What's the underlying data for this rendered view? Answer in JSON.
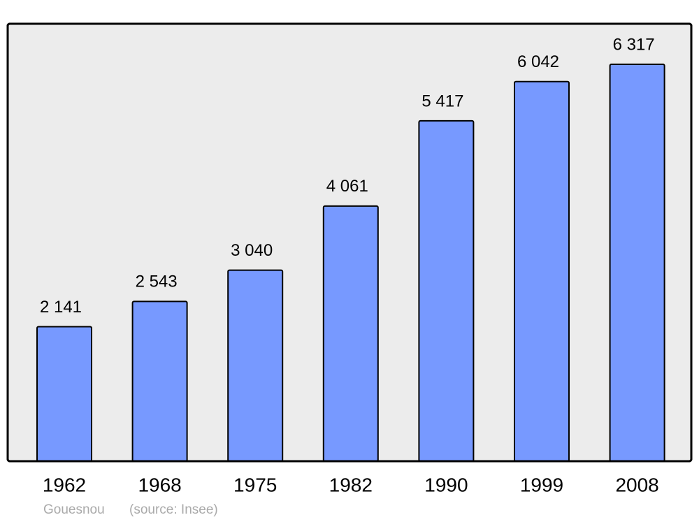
{
  "chart_data": {
    "type": "bar",
    "categories": [
      "1962",
      "1968",
      "1975",
      "1982",
      "1990",
      "1999",
      "2008"
    ],
    "values": [
      2141,
      2543,
      3040,
      4061,
      5417,
      6042,
      6317
    ],
    "value_labels": [
      "2 141",
      "2 543",
      "3 040",
      "4 061",
      "5 417",
      "6 042",
      "6 317"
    ],
    "color": "#7799ff",
    "footer": {
      "place": "Gouesnou",
      "source": "(source: Insee)"
    }
  }
}
